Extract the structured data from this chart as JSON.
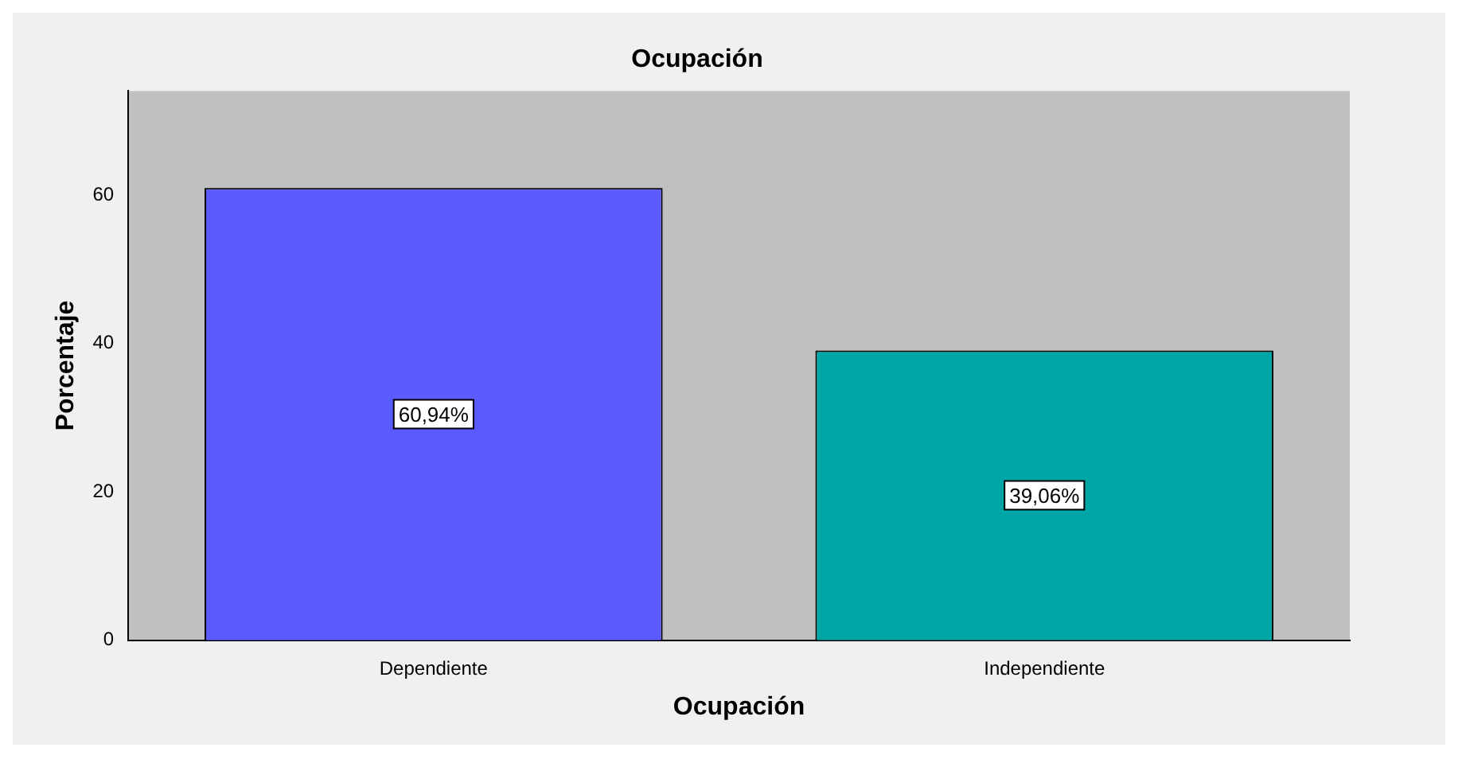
{
  "chart_data": {
    "type": "bar",
    "title": "Ocupación",
    "xlabel": "Ocupación",
    "ylabel": "Porcentaje",
    "categories": [
      "Dependiente",
      "Independiente"
    ],
    "values": [
      60.94,
      39.06
    ],
    "colors": [
      "#5b5bff",
      "#00a5a5"
    ],
    "value_labels": [
      "60,94%",
      "39,06%"
    ],
    "ylim": [
      0,
      74
    ],
    "yticks": [
      0,
      20,
      40,
      60
    ],
    "grid": false,
    "legend": false
  }
}
